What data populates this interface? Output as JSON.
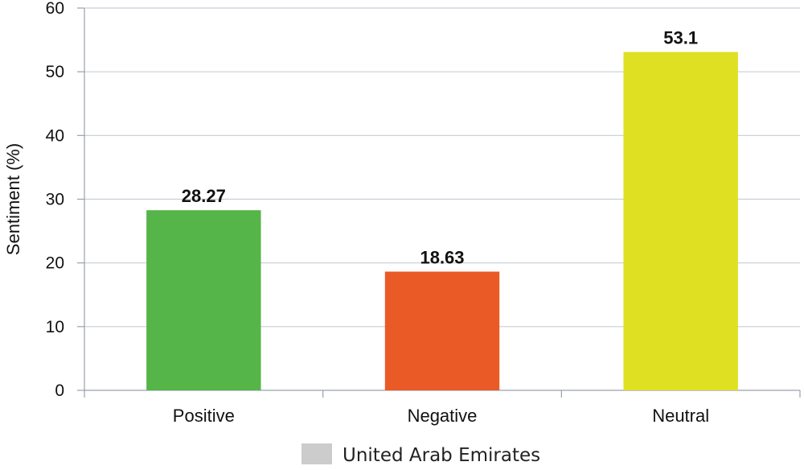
{
  "chart_data": {
    "type": "bar",
    "categories": [
      "Positive",
      "Negative",
      "Neutral"
    ],
    "values": [
      28.27,
      18.63,
      53.1
    ],
    "value_labels": [
      "28.27",
      "18.63",
      "53.1"
    ],
    "colors": [
      "#55b548",
      "#ea5a26",
      "#dfe021"
    ],
    "ylabel": "Sentiment (%)",
    "ylim": [
      0,
      60
    ],
    "yticks": [
      0,
      10,
      20,
      30,
      40,
      50,
      60
    ],
    "grid": true,
    "legend": {
      "position": "bottom",
      "entries": [
        {
          "label": "United Arab Emirates",
          "color": "#cccccc"
        }
      ]
    }
  }
}
